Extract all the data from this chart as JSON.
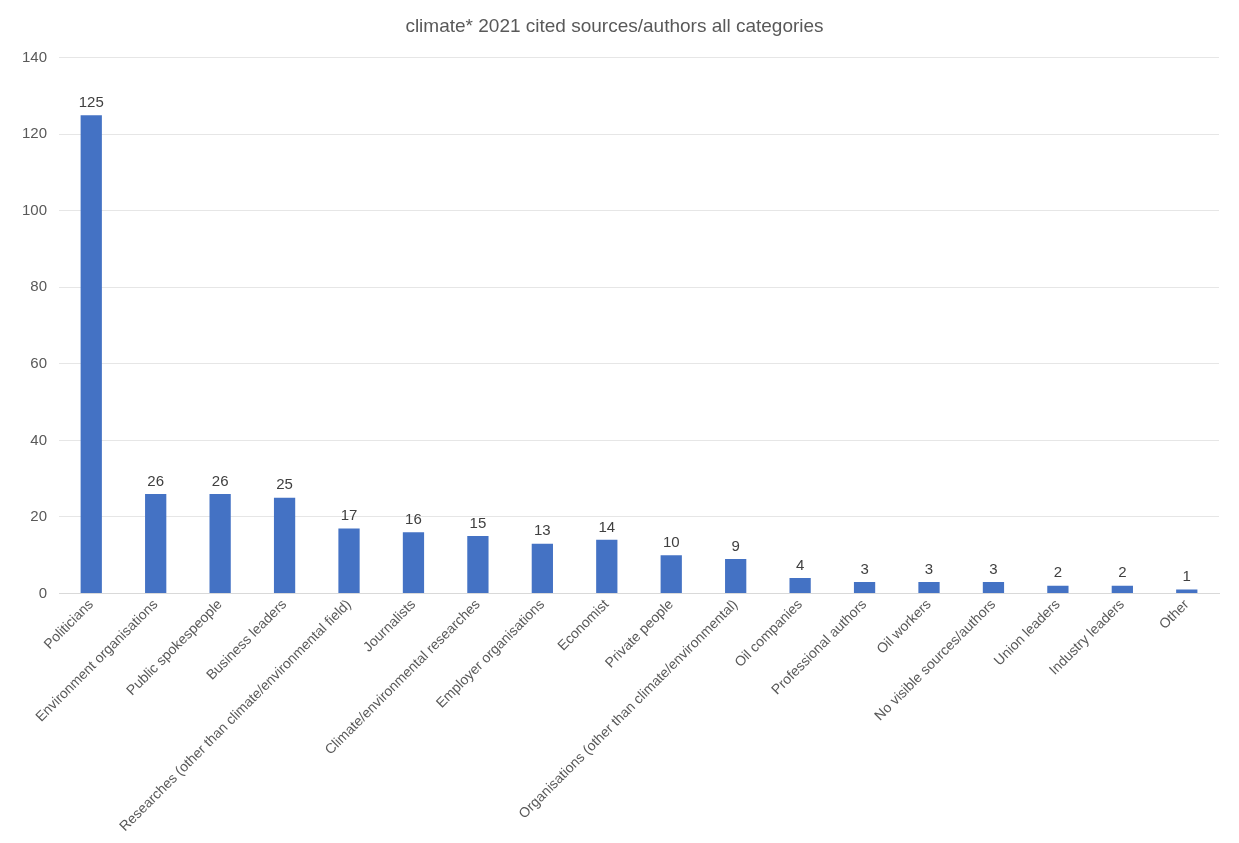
{
  "chart_data": {
    "type": "bar",
    "title": "climate* 2021 cited sources/authors all categories",
    "categories": [
      "Politicians",
      "Environment organisations",
      "Public spokespeople",
      "Business leaders",
      "Researches (other than climate/environmental field)",
      "Journalists",
      "Climate/environmental researches",
      "Employer organisations",
      "Economist",
      "Private people",
      "Organisations (other than climate/environmental)",
      "Oil companies",
      "Professional authors",
      "Oil workers",
      "No visible sources/authors",
      "Union leaders",
      "Industry leaders",
      "Other"
    ],
    "values": [
      125,
      26,
      26,
      25,
      17,
      16,
      15,
      13,
      14,
      10,
      9,
      4,
      3,
      3,
      3,
      2,
      2,
      1
    ],
    "color": "#4472c4",
    "ylim": [
      0,
      140
    ],
    "yticks": [
      0,
      20,
      40,
      60,
      80,
      100,
      120,
      140
    ],
    "grid": "y",
    "data_labels": true,
    "legend": false
  }
}
